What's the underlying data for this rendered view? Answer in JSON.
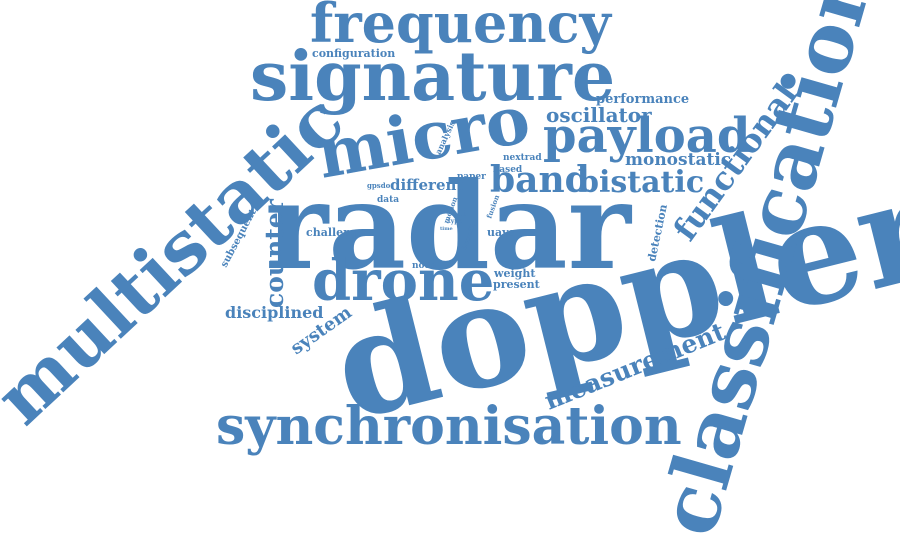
{
  "word_cloud": {
    "color": "#4a83bb",
    "background": "#ffffff",
    "words": [
      {
        "id": "doppler",
        "text": "doppler"
      },
      {
        "id": "radar",
        "text": "radar"
      },
      {
        "id": "classification",
        "text": "classification"
      },
      {
        "id": "multistatic",
        "text": "multistatic"
      },
      {
        "id": "synchronisation",
        "text": "synchronisation"
      },
      {
        "id": "signature",
        "text": "signature"
      },
      {
        "id": "frequency",
        "text": "frequency"
      },
      {
        "id": "micro",
        "text": "micro"
      },
      {
        "id": "drone",
        "text": "drone"
      },
      {
        "id": "payload",
        "text": "payload"
      },
      {
        "id": "band",
        "text": "band"
      },
      {
        "id": "bistatic",
        "text": "bistatic"
      },
      {
        "id": "functional",
        "text": "functional"
      },
      {
        "id": "measurement",
        "text": "measurement"
      },
      {
        "id": "counter",
        "text": "counter"
      },
      {
        "id": "oscillator",
        "text": "oscillator"
      },
      {
        "id": "monostatic",
        "text": "monostatic"
      },
      {
        "id": "disciplined",
        "text": "disciplined"
      },
      {
        "id": "system",
        "text": "system"
      },
      {
        "id": "performance",
        "text": "performance"
      },
      {
        "id": "configuration",
        "text": "configuration"
      },
      {
        "id": "different",
        "text": "different"
      },
      {
        "id": "challenge",
        "text": "challenge"
      },
      {
        "id": "subsequent",
        "text": "subsequent"
      },
      {
        "id": "weight",
        "text": "weight"
      },
      {
        "id": "present",
        "text": "present"
      },
      {
        "id": "detection",
        "text": "detection"
      },
      {
        "id": "uavs",
        "text": "uavs"
      },
      {
        "id": "node",
        "text": "node"
      },
      {
        "id": "paper",
        "text": "paper"
      },
      {
        "id": "based",
        "text": "based"
      },
      {
        "id": "nextrad",
        "text": "nextrad"
      },
      {
        "id": "analysis",
        "text": "analysis"
      },
      {
        "id": "data",
        "text": "data"
      },
      {
        "id": "gpsdo",
        "text": "gpsdo"
      },
      {
        "id": "motion",
        "text": "motion"
      },
      {
        "id": "cot",
        "text": "cot"
      },
      {
        "id": "type",
        "text": "type"
      },
      {
        "id": "fusion",
        "text": "fusion"
      },
      {
        "id": "benefit",
        "text": "benefit"
      },
      {
        "id": "low",
        "text": "low"
      },
      {
        "id": "time",
        "text": "time"
      }
    ]
  }
}
